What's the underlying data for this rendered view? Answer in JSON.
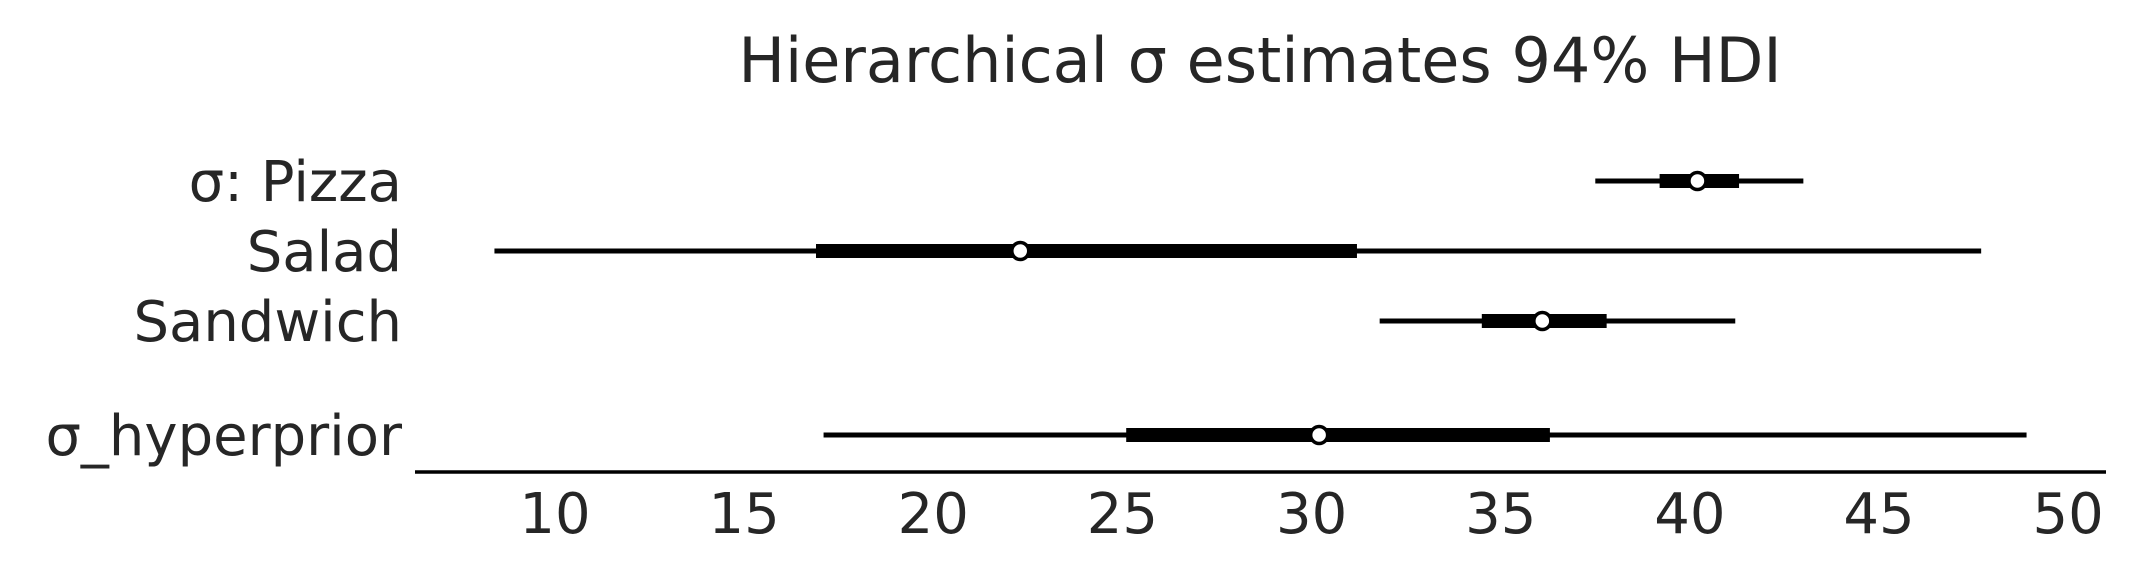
{
  "chart_data": {
    "type": "forest",
    "title": "Hierarchical σ estimates 94% HDI",
    "xlabel": "",
    "ylabel": "",
    "xlim": [
      6.3,
      51.0
    ],
    "xticks": [
      10,
      15,
      20,
      25,
      30,
      35,
      40,
      45,
      50
    ],
    "grid": false,
    "legend": "none",
    "colors": {
      "interval": "#000000",
      "point_fill": "#ffffff",
      "point_edge": "#000000",
      "text": "#262626",
      "axis": "#000000"
    },
    "rows": [
      {
        "label": "σ: Pizza",
        "hdi_94": [
          37.5,
          43.0
        ],
        "interquartile": [
          39.2,
          41.3
        ],
        "point": 40.2
      },
      {
        "label": "Salad",
        "hdi_94": [
          8.4,
          47.7
        ],
        "interquartile": [
          16.9,
          31.2
        ],
        "point": 22.3
      },
      {
        "label": "Sandwich",
        "hdi_94": [
          31.8,
          41.2
        ],
        "interquartile": [
          34.5,
          37.8
        ],
        "point": 36.1
      },
      {
        "label": "σ_hyperprior",
        "hdi_94": [
          17.1,
          48.9
        ],
        "interquartile": [
          25.1,
          36.3
        ],
        "point": 30.2
      }
    ]
  }
}
